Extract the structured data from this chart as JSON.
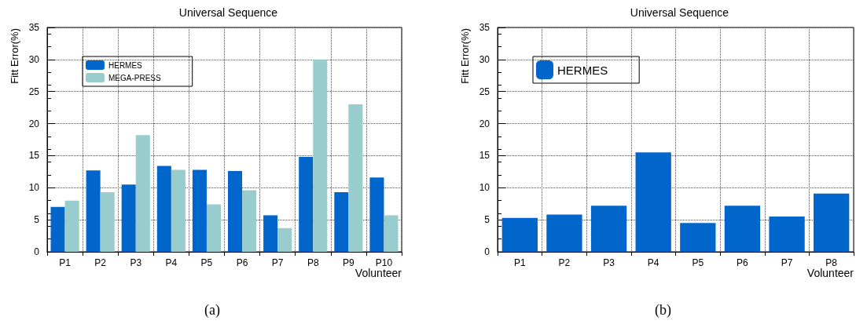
{
  "chart_data": [
    {
      "type": "bar",
      "title": "Universal Sequence",
      "xlabel": "Volunteer",
      "ylabel": "Fitt Error(%)",
      "categories": [
        "P1",
        "P2",
        "P3",
        "P4",
        "P5",
        "P6",
        "P7",
        "P8",
        "P9",
        "P10"
      ],
      "series": [
        {
          "name": "HERMES",
          "color": "#0066cc",
          "values": [
            7.0,
            12.7,
            10.5,
            13.4,
            12.8,
            12.6,
            5.7,
            14.8,
            9.3,
            11.6
          ]
        },
        {
          "name": "MEGA-PRESS",
          "color": "#99cccc",
          "values": [
            8.0,
            9.3,
            18.2,
            12.8,
            7.4,
            9.6,
            3.7,
            30.0,
            23.0,
            5.7
          ]
        }
      ],
      "ylim": [
        0,
        35
      ],
      "yticks": [
        0,
        5,
        10,
        15,
        20,
        25,
        30,
        35
      ],
      "grid": true,
      "legend": "top left",
      "annotations": [
        "(a)"
      ]
    },
    {
      "type": "bar",
      "title": "Universal Sequence",
      "xlabel": "Volunteer",
      "ylabel": "Fitt Error(%)",
      "categories": [
        "P1",
        "P2",
        "P3",
        "P4",
        "P5",
        "P6",
        "P7",
        "P8"
      ],
      "series": [
        {
          "name": "HERMES",
          "color": "#0066cc",
          "values": [
            5.3,
            5.8,
            7.2,
            15.5,
            4.5,
            7.2,
            5.5,
            9.1
          ]
        }
      ],
      "ylim": [
        0,
        35
      ],
      "yticks": [
        0,
        5,
        10,
        15,
        20,
        25,
        30,
        35
      ],
      "grid": true,
      "legend": "top left",
      "annotations": [
        "(b)"
      ]
    }
  ]
}
